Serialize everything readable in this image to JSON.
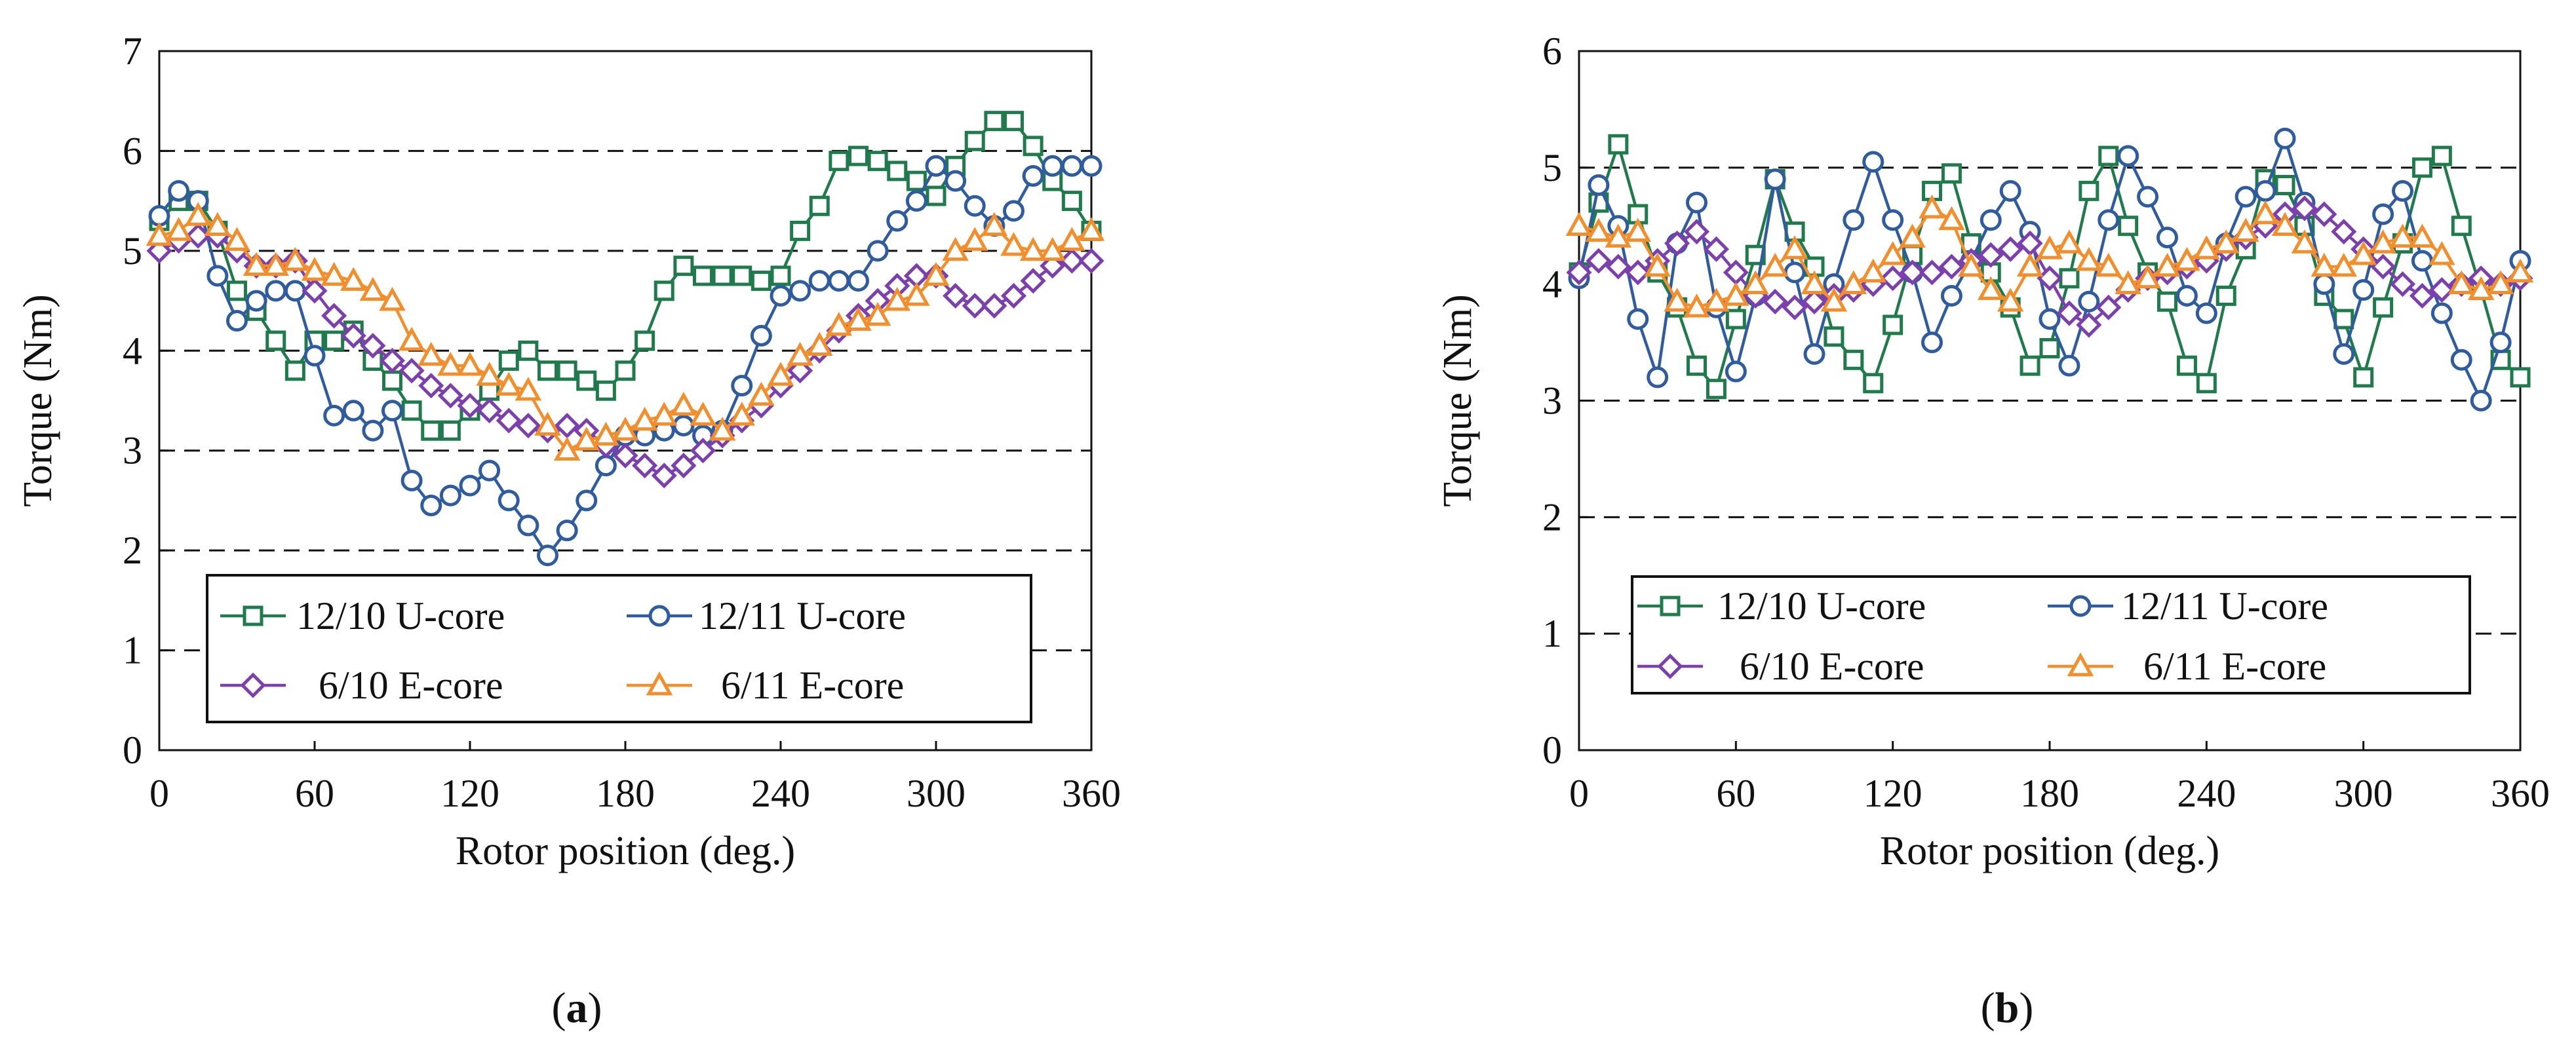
{
  "colors": {
    "u_core_12_10": "#1f7a4c",
    "u_core_12_11": "#2f5c9e",
    "e_core_6_10": "#7b3fae",
    "e_core_6_11": "#f28e2b"
  },
  "chart_data": [
    {
      "type": "line",
      "panel": "a",
      "panel_label": [
        "(",
        "a",
        ")"
      ],
      "xlabel": "Rotor position (deg.)",
      "ylabel": "Torque (Nm)",
      "xlim": [
        0,
        360
      ],
      "ylim": [
        0,
        7
      ],
      "xticks": [
        0,
        60,
        120,
        180,
        240,
        300,
        360
      ],
      "yticks": [
        0,
        1,
        2,
        3,
        4,
        5,
        6,
        7
      ],
      "gridlines": [
        1,
        2,
        3,
        4,
        5,
        6
      ],
      "legend_position": "bottom-center",
      "x": [
        0,
        7.5,
        15,
        22.5,
        30,
        37.5,
        45,
        52.5,
        60,
        67.5,
        75,
        82.5,
        90,
        97.5,
        105,
        112.5,
        120,
        127.5,
        135,
        142.5,
        150,
        157.5,
        165,
        172.5,
        180,
        187.5,
        195,
        202.5,
        210,
        217.5,
        225,
        232.5,
        240,
        247.5,
        255,
        262.5,
        270,
        277.5,
        285,
        292.5,
        300,
        307.5,
        315,
        322.5,
        330,
        337.5,
        345,
        352.5,
        360
      ],
      "series": [
        {
          "name": "12/10 U-core",
          "marker": "square",
          "color_key": "u_core_12_10",
          "values": [
            5.3,
            5.5,
            5.5,
            5.2,
            4.6,
            4.4,
            4.1,
            3.8,
            4.1,
            4.1,
            4.2,
            3.9,
            3.7,
            3.4,
            3.2,
            3.2,
            3.4,
            3.6,
            3.9,
            4.0,
            3.8,
            3.8,
            3.7,
            3.6,
            3.8,
            4.1,
            4.6,
            4.85,
            4.75,
            4.75,
            4.75,
            4.7,
            4.75,
            5.2,
            5.45,
            5.9,
            5.95,
            5.9,
            5.8,
            5.7,
            5.55,
            5.85,
            6.1,
            6.3,
            6.3,
            6.05,
            5.7,
            5.5,
            5.2
          ]
        },
        {
          "name": "12/11 U-core",
          "marker": "circle",
          "color_key": "u_core_12_11",
          "values": [
            5.35,
            5.6,
            5.5,
            4.75,
            4.3,
            4.5,
            4.6,
            4.6,
            3.95,
            3.35,
            3.4,
            3.2,
            3.4,
            2.7,
            2.45,
            2.55,
            2.65,
            2.8,
            2.5,
            2.25,
            1.95,
            2.2,
            2.5,
            2.85,
            3.15,
            3.15,
            3.2,
            3.25,
            3.15,
            3.2,
            3.65,
            4.15,
            4.55,
            4.6,
            4.7,
            4.7,
            4.7,
            5.0,
            5.3,
            5.5,
            5.85,
            5.7,
            5.45,
            5.25,
            5.4,
            5.75,
            5.85,
            5.85,
            5.85
          ]
        },
        {
          "name": "6/10 E-core",
          "marker": "diamond",
          "color_key": "e_core_6_10",
          "values": [
            5.0,
            5.1,
            5.15,
            5.15,
            5.0,
            4.85,
            4.85,
            4.9,
            4.6,
            4.35,
            4.15,
            4.05,
            3.9,
            3.8,
            3.65,
            3.55,
            3.45,
            3.4,
            3.3,
            3.25,
            3.2,
            3.25,
            3.2,
            3.05,
            2.95,
            2.85,
            2.75,
            2.85,
            3.0,
            3.15,
            3.3,
            3.45,
            3.65,
            3.8,
            4.0,
            4.2,
            4.35,
            4.5,
            4.65,
            4.75,
            4.75,
            4.55,
            4.45,
            4.45,
            4.55,
            4.7,
            4.85,
            4.9,
            4.9
          ]
        },
        {
          "name": "6/11 E-core",
          "marker": "triangle",
          "color_key": "e_core_6_11",
          "values": [
            5.15,
            5.2,
            5.35,
            5.25,
            5.1,
            4.85,
            4.85,
            4.9,
            4.8,
            4.75,
            4.7,
            4.6,
            4.5,
            4.1,
            3.95,
            3.85,
            3.85,
            3.75,
            3.65,
            3.6,
            3.25,
            3.0,
            3.1,
            3.15,
            3.2,
            3.3,
            3.35,
            3.45,
            3.35,
            3.2,
            3.35,
            3.55,
            3.75,
            3.95,
            4.05,
            4.25,
            4.3,
            4.35,
            4.5,
            4.55,
            4.75,
            5.0,
            5.1,
            5.25,
            5.05,
            5.0,
            5.0,
            5.1,
            5.2
          ]
        }
      ]
    },
    {
      "type": "line",
      "panel": "b",
      "panel_label": [
        "(",
        "b",
        ")"
      ],
      "xlabel": "Rotor position (deg.)",
      "ylabel": "Torque (Nm)",
      "xlim": [
        0,
        360
      ],
      "ylim": [
        0,
        6
      ],
      "xticks": [
        0,
        60,
        120,
        180,
        240,
        300,
        360
      ],
      "yticks": [
        0,
        1,
        2,
        3,
        4,
        5,
        6
      ],
      "gridlines": [
        1,
        2,
        3,
        5
      ],
      "legend_position": "bottom-center",
      "x": [
        0,
        7.5,
        15,
        22.5,
        30,
        37.5,
        45,
        52.5,
        60,
        67.5,
        75,
        82.5,
        90,
        97.5,
        105,
        112.5,
        120,
        127.5,
        135,
        142.5,
        150,
        157.5,
        165,
        172.5,
        180,
        187.5,
        195,
        202.5,
        210,
        217.5,
        225,
        232.5,
        240,
        247.5,
        255,
        262.5,
        270,
        277.5,
        285,
        292.5,
        300,
        307.5,
        315,
        322.5,
        330,
        337.5,
        345,
        352.5,
        360
      ],
      "series": [
        {
          "name": "12/10 U-core",
          "marker": "square",
          "color_key": "u_core_12_10",
          "values": [
            4.1,
            4.7,
            5.2,
            4.6,
            4.1,
            3.8,
            3.3,
            3.1,
            3.7,
            4.25,
            4.9,
            4.45,
            4.15,
            3.55,
            3.35,
            3.15,
            3.65,
            4.25,
            4.8,
            4.95,
            4.35,
            4.1,
            3.8,
            3.3,
            3.45,
            4.05,
            4.8,
            5.1,
            4.5,
            4.1,
            3.85,
            3.3,
            3.15,
            3.9,
            4.3,
            4.9,
            4.85,
            4.5,
            3.9,
            3.7,
            3.2,
            3.8,
            4.35,
            5.0,
            5.1,
            4.5,
            3.95,
            3.35,
            3.2
          ]
        },
        {
          "name": "12/11 U-core",
          "marker": "circle",
          "color_key": "u_core_12_11",
          "values": [
            4.05,
            4.85,
            4.5,
            3.7,
            3.2,
            4.35,
            4.7,
            3.8,
            3.25,
            3.9,
            4.9,
            4.1,
            3.4,
            4.0,
            4.55,
            5.05,
            4.55,
            4.1,
            3.5,
            3.9,
            4.2,
            4.55,
            4.8,
            4.45,
            3.7,
            3.3,
            3.85,
            4.55,
            5.1,
            4.75,
            4.4,
            3.9,
            3.75,
            4.35,
            4.75,
            4.8,
            5.25,
            4.7,
            4.0,
            3.4,
            3.95,
            4.6,
            4.8,
            4.2,
            3.75,
            3.35,
            3.0,
            3.5,
            4.2
          ]
        },
        {
          "name": "6/10 E-core",
          "marker": "diamond",
          "color_key": "e_core_6_10",
          "values": [
            4.1,
            4.2,
            4.15,
            4.1,
            4.2,
            4.35,
            4.45,
            4.3,
            4.1,
            3.9,
            3.85,
            3.8,
            3.85,
            3.9,
            3.95,
            4.0,
            4.05,
            4.1,
            4.1,
            4.15,
            4.2,
            4.25,
            4.3,
            4.35,
            4.05,
            3.75,
            3.65,
            3.8,
            3.95,
            4.05,
            4.1,
            4.15,
            4.2,
            4.3,
            4.4,
            4.5,
            4.6,
            4.65,
            4.6,
            4.45,
            4.3,
            4.15,
            4.0,
            3.9,
            3.95,
            4.0,
            4.05,
            4.0,
            4.05
          ]
        },
        {
          "name": "6/11 E-core",
          "marker": "triangle",
          "color_key": "e_core_6_11",
          "values": [
            4.5,
            4.45,
            4.4,
            4.45,
            4.15,
            3.85,
            3.8,
            3.85,
            3.9,
            4.0,
            4.15,
            4.3,
            4.0,
            3.85,
            4.0,
            4.1,
            4.25,
            4.4,
            4.65,
            4.55,
            4.15,
            3.95,
            3.85,
            4.15,
            4.3,
            4.35,
            4.2,
            4.15,
            4.0,
            4.05,
            4.15,
            4.2,
            4.3,
            4.35,
            4.45,
            4.6,
            4.5,
            4.35,
            4.15,
            4.15,
            4.25,
            4.35,
            4.4,
            4.4,
            4.25,
            4.0,
            3.95,
            4.0,
            4.1
          ]
        }
      ]
    }
  ]
}
